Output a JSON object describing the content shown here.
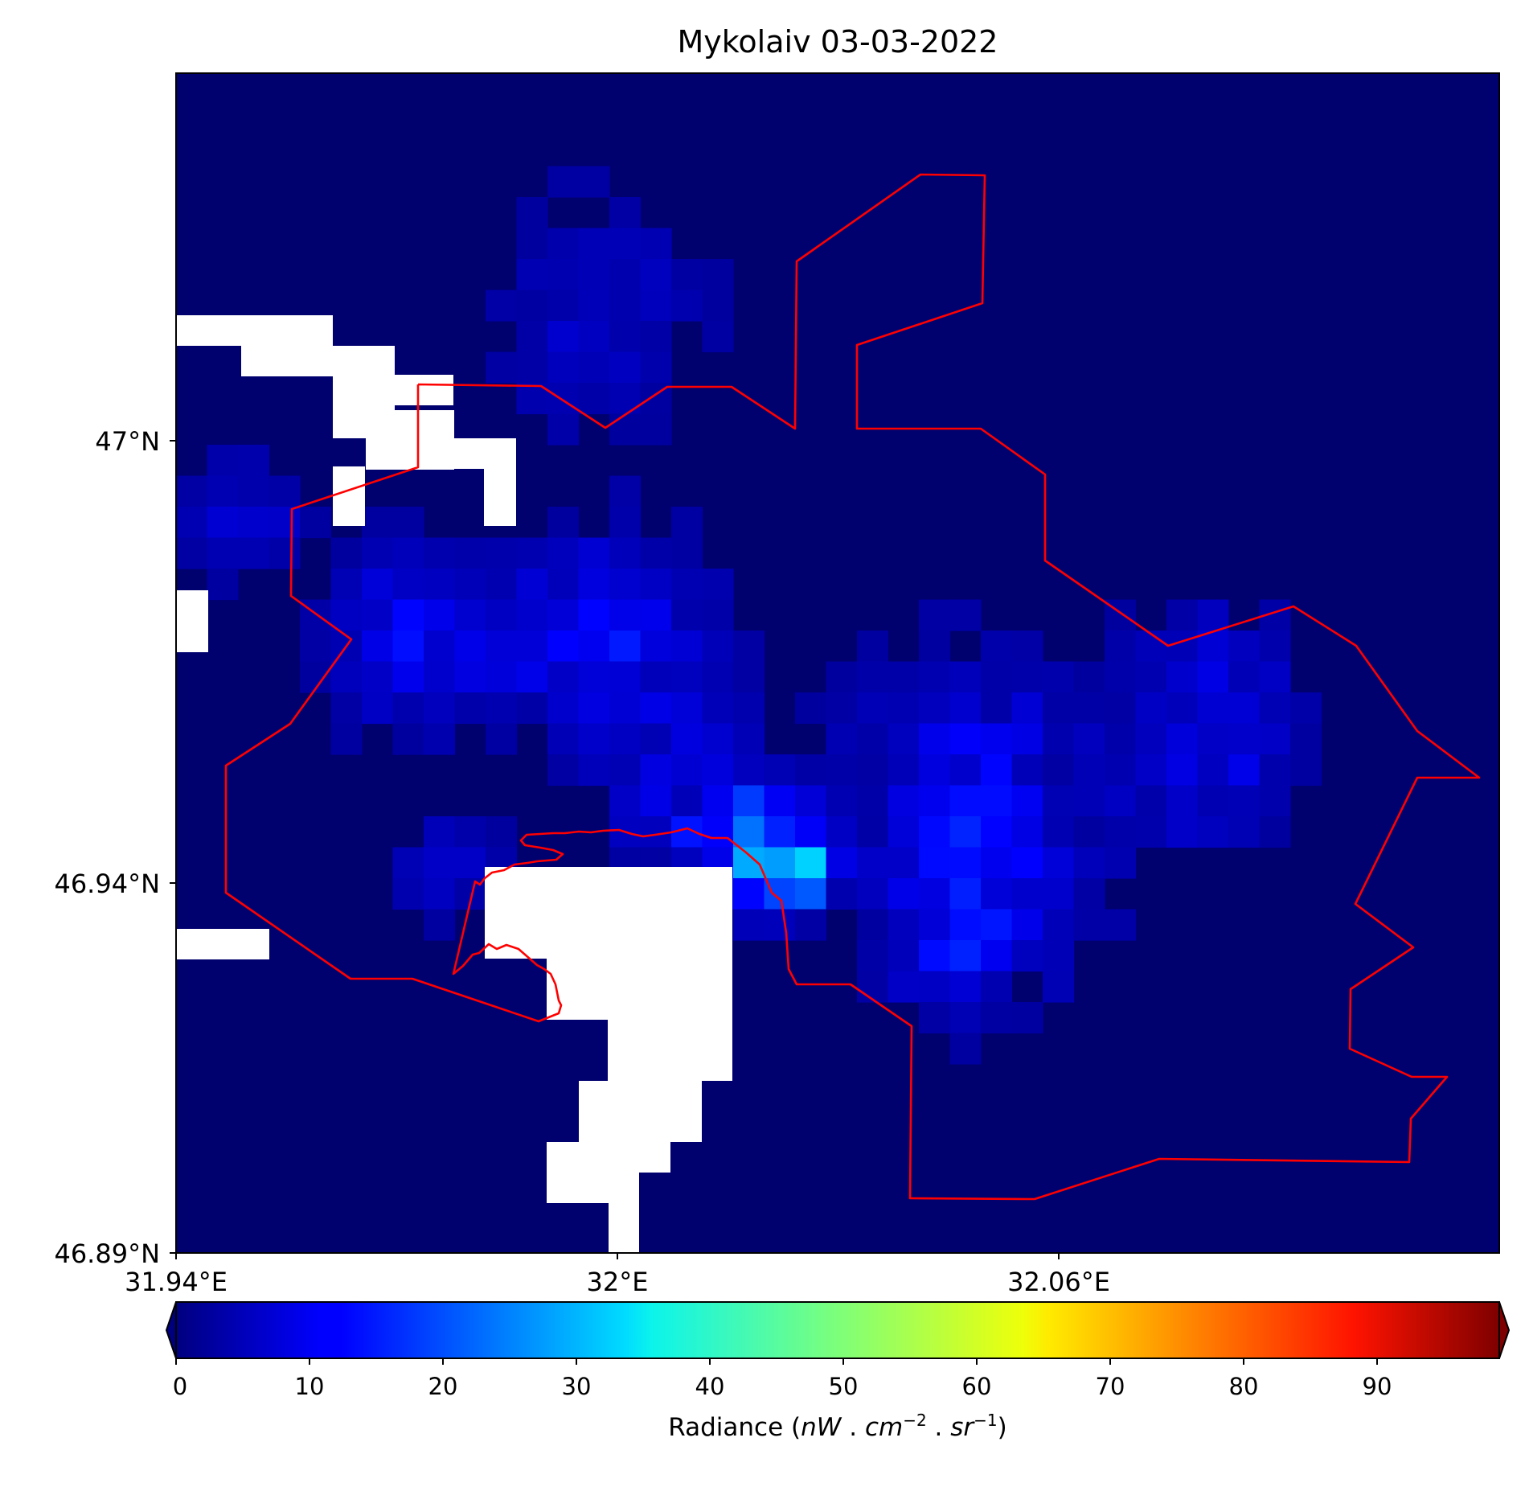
{
  "title": "Mykolaiv 03-03-2022",
  "map": {
    "lat_ticks": [
      "47°N",
      "46.94°N",
      "46.89°N"
    ],
    "lon_ticks": [
      "31.94°E",
      "32°E",
      "32.06°E"
    ],
    "boundary_color": "#ff0000",
    "nodata_color": "#ffffff",
    "grid_note": "Gridded night-time radiance; mostly 0–10, brighter band along the river, peak near 35."
  },
  "colorbar": {
    "colormap": "jet",
    "ticks": [
      "0",
      "10",
      "20",
      "30",
      "40",
      "50",
      "60",
      "70",
      "80",
      "90"
    ],
    "label_prefix": "Radiance (",
    "label_unit_nw": "nW",
    "label_unit_cm": "cm",
    "label_unit_sr": "sr",
    "label_exp": "−2",
    "label_exp2": "−1",
    "range": [
      0,
      100
    ]
  }
}
